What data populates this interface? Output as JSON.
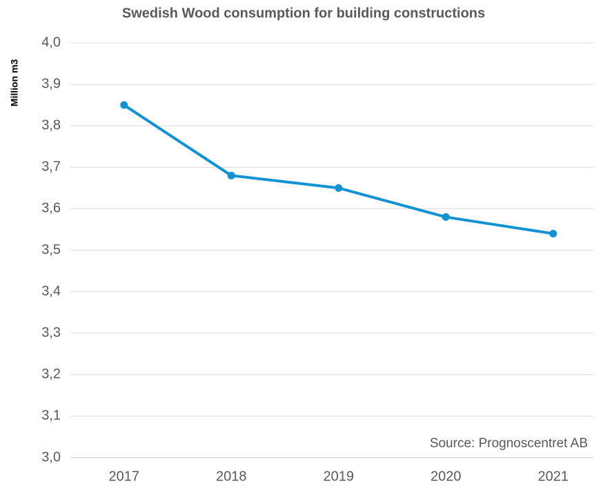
{
  "chart_data": {
    "type": "line",
    "title": "Swedish Wood consumption for building constructions",
    "y_label": "Million m3",
    "annotation": "Source: Prognoscentret AB",
    "categories": [
      "2017",
      "2018",
      "2019",
      "2020",
      "2021"
    ],
    "series": [
      {
        "name": "Wood consumption",
        "color": "#1192d4",
        "values": [
          3.85,
          3.68,
          3.65,
          3.58,
          3.54
        ]
      }
    ],
    "ylim": [
      3,
      4
    ],
    "yticks": [
      {
        "value": 3,
        "label": "3,0"
      },
      {
        "value": 3.1,
        "label": "3,1"
      },
      {
        "value": 3.2,
        "label": "3,2"
      },
      {
        "value": 3.3,
        "label": "3,3"
      },
      {
        "value": 3.4,
        "label": "3,4"
      },
      {
        "value": 3.5,
        "label": "3,5"
      },
      {
        "value": 3.6,
        "label": "3,6"
      },
      {
        "value": 3.7,
        "label": "3,7"
      },
      {
        "value": 3.8,
        "label": "3,8"
      },
      {
        "value": 3.9,
        "label": "3,9"
      },
      {
        "value": 4,
        "label": "4,0"
      }
    ],
    "grid": true
  }
}
